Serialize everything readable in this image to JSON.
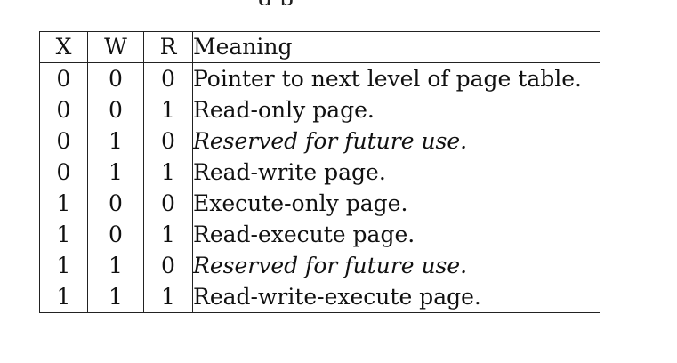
{
  "caption_fragment": "g     p",
  "table": {
    "headers": [
      "X",
      "W",
      "R",
      "Meaning"
    ],
    "rows": [
      {
        "x": "0",
        "w": "0",
        "r": "0",
        "meaning": "Pointer to next level of page table.",
        "italic": false
      },
      {
        "x": "0",
        "w": "0",
        "r": "1",
        "meaning": "Read-only page.",
        "italic": false
      },
      {
        "x": "0",
        "w": "1",
        "r": "0",
        "meaning": "Reserved for future use.",
        "italic": true
      },
      {
        "x": "0",
        "w": "1",
        "r": "1",
        "meaning": "Read-write page.",
        "italic": false
      },
      {
        "x": "1",
        "w": "0",
        "r": "0",
        "meaning": "Execute-only page.",
        "italic": false
      },
      {
        "x": "1",
        "w": "0",
        "r": "1",
        "meaning": "Read-execute page.",
        "italic": false
      },
      {
        "x": "1",
        "w": "1",
        "r": "0",
        "meaning": "Reserved for future use.",
        "italic": true
      },
      {
        "x": "1",
        "w": "1",
        "r": "1",
        "meaning": "Read-write-execute page.",
        "italic": false
      }
    ]
  }
}
